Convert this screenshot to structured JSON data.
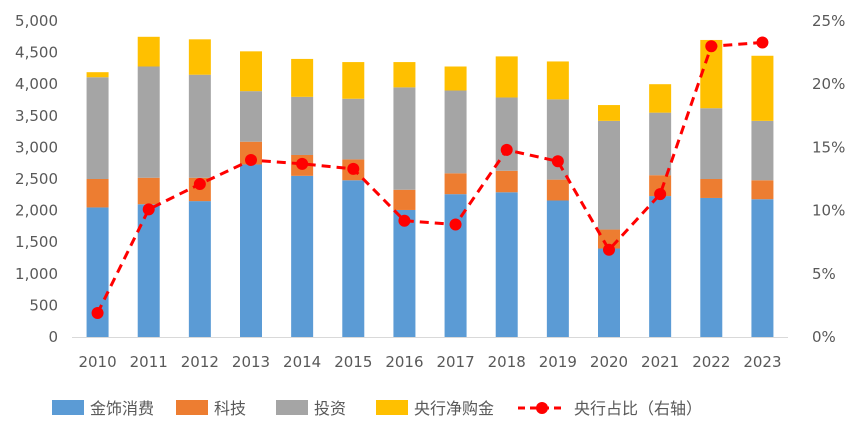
{
  "chart_data": {
    "type": "bar",
    "stacked": true,
    "categories": [
      "2010",
      "2011",
      "2012",
      "2013",
      "2014",
      "2015",
      "2016",
      "2017",
      "2018",
      "2019",
      "2020",
      "2021",
      "2022",
      "2023"
    ],
    "series": [
      {
        "name": "金饰消费",
        "color": "#5B9BD5",
        "values": [
          2050,
          2100,
          2150,
          2730,
          2550,
          2480,
          2010,
          2260,
          2290,
          2160,
          1400,
          2230,
          2200,
          2180
        ]
      },
      {
        "name": "科技",
        "color": "#ED7D31",
        "values": [
          450,
          420,
          370,
          360,
          330,
          330,
          320,
          330,
          340,
          330,
          300,
          330,
          300,
          300
        ]
      },
      {
        "name": "投资",
        "color": "#A5A5A5",
        "values": [
          1610,
          1760,
          1630,
          800,
          920,
          960,
          1620,
          1310,
          1160,
          1270,
          1720,
          990,
          1120,
          940
        ]
      },
      {
        "name": "央行净购金",
        "color": "#FFC000",
        "values": [
          80,
          470,
          560,
          630,
          600,
          580,
          400,
          380,
          650,
          600,
          250,
          450,
          1080,
          1030
        ]
      }
    ],
    "line_series": {
      "name": "央行占比（右轴）",
      "color": "#FF0000",
      "values": [
        1.9,
        10.1,
        12.1,
        14.0,
        13.7,
        13.3,
        9.2,
        8.9,
        14.8,
        13.9,
        6.9,
        11.3,
        23.0,
        23.3
      ]
    },
    "y_left": {
      "min": 0,
      "max": 5000,
      "ticks": [
        "0",
        "500",
        "1,000",
        "1,500",
        "2,000",
        "2,500",
        "3,000",
        "3,500",
        "4,000",
        "4,500",
        "5,000"
      ]
    },
    "y_right": {
      "min": 0,
      "max": 25,
      "ticks": [
        "0%",
        "5%",
        "10%",
        "15%",
        "20%",
        "25%"
      ]
    },
    "legend_position": "bottom",
    "grid": false
  }
}
